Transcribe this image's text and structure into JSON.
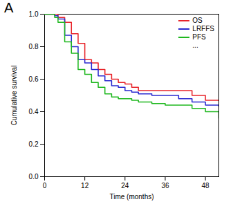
{
  "chart_data": {
    "type": "line",
    "line_style": "step",
    "title": "A",
    "x_label": "Time (months)",
    "y_label": "Cumulative survival",
    "annotations": [
      "..."
    ],
    "legend": "top-right",
    "x": [
      0,
      3,
      4,
      6,
      8,
      10,
      12,
      14,
      16,
      18,
      20,
      22,
      24,
      26,
      28,
      32,
      36,
      40,
      44,
      48,
      52
    ],
    "series": [
      {
        "name": "OS",
        "color": "#e8252b",
        "values": [
          1,
          1,
          0.98,
          0.95,
          0.88,
          0.82,
          0.72,
          0.7,
          0.66,
          0.63,
          0.6,
          0.58,
          0.57,
          0.55,
          0.53,
          0.53,
          0.53,
          0.53,
          0.5,
          0.47,
          0.47
        ]
      },
      {
        "name": "LRFFS",
        "color": "#2a2ad0",
        "values": [
          1,
          0.99,
          0.97,
          0.87,
          0.8,
          0.72,
          0.7,
          0.66,
          0.62,
          0.59,
          0.56,
          0.55,
          0.53,
          0.52,
          0.51,
          0.5,
          0.5,
          0.48,
          0.46,
          0.44,
          0.43
        ]
      },
      {
        "name": "PFS",
        "color": "#1fb81f",
        "values": [
          1,
          0.98,
          0.95,
          0.83,
          0.76,
          0.66,
          0.63,
          0.58,
          0.55,
          0.51,
          0.49,
          0.48,
          0.48,
          0.47,
          0.46,
          0.45,
          0.44,
          0.44,
          0.42,
          0.4,
          0.36
        ]
      }
    ],
    "xlim": [
      0,
      52
    ],
    "xticks": [
      0,
      12,
      24,
      36,
      48
    ],
    "ylim": [
      0,
      1
    ],
    "yticks": [
      {
        "value": 0,
        "label": "0.0"
      },
      0.2,
      0.4,
      0.6,
      0.8,
      {
        "value": 1,
        "label": "1.0"
      }
    ],
    "grid": false
  }
}
